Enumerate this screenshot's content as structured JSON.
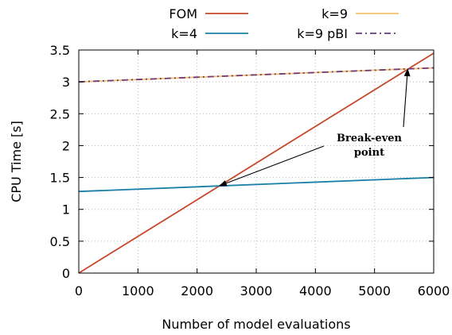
{
  "chart_data": {
    "type": "line",
    "title": "",
    "xlabel": "Number of model evaluations",
    "ylabel": "CPU Time [s]",
    "xlim": [
      0,
      6000
    ],
    "ylim": [
      0,
      3.5
    ],
    "xticks": [
      0,
      1000,
      2000,
      3000,
      4000,
      5000,
      6000
    ],
    "yticks": [
      0,
      0.5,
      1,
      1.5,
      2,
      2.5,
      3,
      3.5
    ],
    "xtick_labels": [
      "0",
      "1000",
      "2000",
      "3000",
      "4000",
      "5000",
      "6000"
    ],
    "ytick_labels": [
      "0",
      "0.5",
      "1",
      "1.5",
      "2",
      "2.5",
      "3",
      "3.5"
    ],
    "grid": true,
    "legend_position": "top-outside",
    "series": [
      {
        "name": "FOM",
        "color": "#c8482b",
        "dash": "solid",
        "x": [
          0,
          6000
        ],
        "y": [
          0,
          3.45
        ]
      },
      {
        "name": "k=9",
        "color": "#f5c26b",
        "dash": "solid",
        "x": [
          0,
          6000
        ],
        "y": [
          3.0,
          3.22
        ]
      },
      {
        "name": "k=4",
        "color": "#1a7fa8",
        "dash": "solid",
        "x": [
          0,
          6000
        ],
        "y": [
          1.28,
          1.5
        ]
      },
      {
        "name": "k=9 pBI",
        "color": "#6a3d7a",
        "dash": "dashdot",
        "x": [
          0,
          6000
        ],
        "y": [
          3.0,
          3.22
        ]
      }
    ],
    "annotations": [
      {
        "text_lines": [
          "Break-even",
          "point"
        ],
        "arrows_to": [
          [
            2380,
            1.37
          ],
          [
            5560,
            3.2
          ]
        ]
      }
    ]
  }
}
